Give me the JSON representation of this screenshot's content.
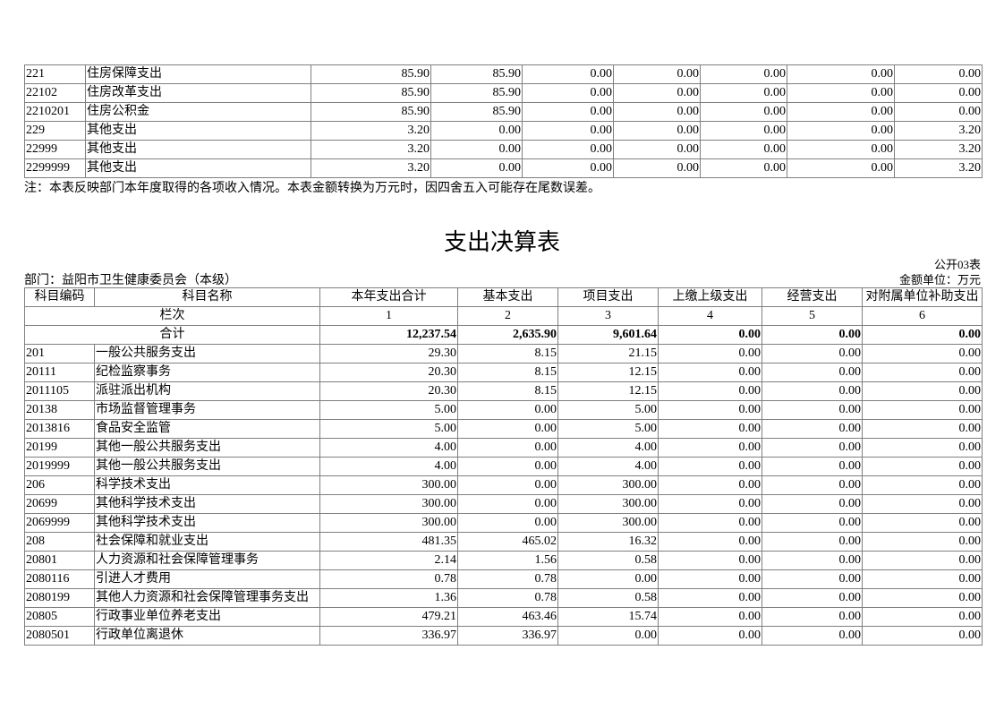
{
  "income_table_tail": {
    "rows": [
      [
        "221",
        "住房保障支出",
        "85.90",
        "85.90",
        "0.00",
        "0.00",
        "0.00",
        "0.00",
        "0.00"
      ],
      [
        "22102",
        "住房改革支出",
        "85.90",
        "85.90",
        "0.00",
        "0.00",
        "0.00",
        "0.00",
        "0.00"
      ],
      [
        "2210201",
        "住房公积金",
        "85.90",
        "85.90",
        "0.00",
        "0.00",
        "0.00",
        "0.00",
        "0.00"
      ],
      [
        "229",
        "其他支出",
        "3.20",
        "0.00",
        "0.00",
        "0.00",
        "0.00",
        "0.00",
        "3.20"
      ],
      [
        "22999",
        "其他支出",
        "3.20",
        "0.00",
        "0.00",
        "0.00",
        "0.00",
        "0.00",
        "3.20"
      ],
      [
        "2299999",
        "其他支出",
        "3.20",
        "0.00",
        "0.00",
        "0.00",
        "0.00",
        "0.00",
        "3.20"
      ]
    ],
    "note": "注：本表反映部门本年度取得的各项收入情况。本表金额转换为万元时，因四舍五入可能存在尾数误差。"
  },
  "expenditure_table": {
    "title": "支出决算表",
    "form_no": "公开03表",
    "department": "部门：益阳市卫生健康委员会（本级）",
    "unit": "金额单位：万元",
    "headers": [
      "科目编码",
      "科目名称",
      "本年支出合计",
      "基本支出",
      "项目支出",
      "上缴上级支出",
      "经营支出",
      "对附属单位补助支出"
    ],
    "column_index_label": "栏次",
    "column_indices": [
      "1",
      "2",
      "3",
      "4",
      "5",
      "6"
    ],
    "total_label": "合计",
    "totals": [
      "12,237.54",
      "2,635.90",
      "9,601.64",
      "0.00",
      "0.00",
      "0.00"
    ],
    "rows": [
      [
        "201",
        "一般公共服务支出",
        "29.30",
        "8.15",
        "21.15",
        "0.00",
        "0.00",
        "0.00"
      ],
      [
        "20111",
        "纪检监察事务",
        "20.30",
        "8.15",
        "12.15",
        "0.00",
        "0.00",
        "0.00"
      ],
      [
        "2011105",
        "派驻派出机构",
        "20.30",
        "8.15",
        "12.15",
        "0.00",
        "0.00",
        "0.00"
      ],
      [
        "20138",
        "市场监督管理事务",
        "5.00",
        "0.00",
        "5.00",
        "0.00",
        "0.00",
        "0.00"
      ],
      [
        "2013816",
        "食品安全监管",
        "5.00",
        "0.00",
        "5.00",
        "0.00",
        "0.00",
        "0.00"
      ],
      [
        "20199",
        "其他一般公共服务支出",
        "4.00",
        "0.00",
        "4.00",
        "0.00",
        "0.00",
        "0.00"
      ],
      [
        "2019999",
        "其他一般公共服务支出",
        "4.00",
        "0.00",
        "4.00",
        "0.00",
        "0.00",
        "0.00"
      ],
      [
        "206",
        "科学技术支出",
        "300.00",
        "0.00",
        "300.00",
        "0.00",
        "0.00",
        "0.00"
      ],
      [
        "20699",
        "其他科学技术支出",
        "300.00",
        "0.00",
        "300.00",
        "0.00",
        "0.00",
        "0.00"
      ],
      [
        "2069999",
        "其他科学技术支出",
        "300.00",
        "0.00",
        "300.00",
        "0.00",
        "0.00",
        "0.00"
      ],
      [
        "208",
        "社会保障和就业支出",
        "481.35",
        "465.02",
        "16.32",
        "0.00",
        "0.00",
        "0.00"
      ],
      [
        "20801",
        "人力资源和社会保障管理事务",
        "2.14",
        "1.56",
        "0.58",
        "0.00",
        "0.00",
        "0.00"
      ],
      [
        "2080116",
        "引进人才费用",
        "0.78",
        "0.78",
        "0.00",
        "0.00",
        "0.00",
        "0.00"
      ],
      [
        "2080199",
        "其他人力资源和社会保障管理事务支出",
        "1.36",
        "0.78",
        "0.58",
        "0.00",
        "0.00",
        "0.00"
      ],
      [
        "20805",
        "行政事业单位养老支出",
        "479.21",
        "463.46",
        "15.74",
        "0.00",
        "0.00",
        "0.00"
      ],
      [
        "2080501",
        "行政单位离退休",
        "336.97",
        "336.97",
        "0.00",
        "0.00",
        "0.00",
        "0.00"
      ]
    ]
  }
}
